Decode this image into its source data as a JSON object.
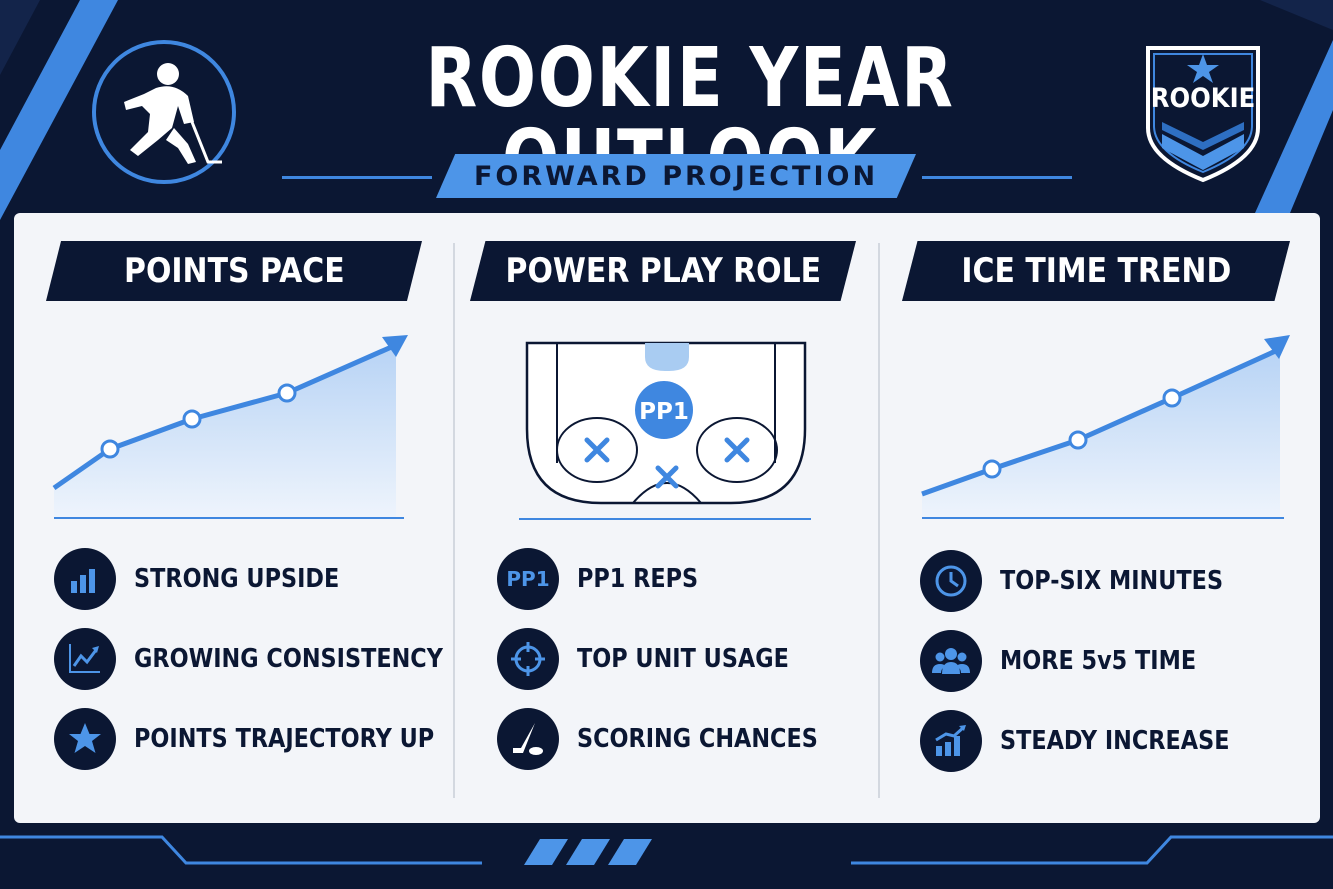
{
  "header": {
    "title": "ROOKIE YEAR OUTLOOK",
    "subtitle": "FORWARD PROJECTION",
    "badge_text": "ROOKIE",
    "player_icon": "hockey-player-icon",
    "badge_icon": "star-icon"
  },
  "colors": {
    "navy": "#0b1733",
    "accent": "#4d95e8",
    "panel": "#f3f5f9"
  },
  "columns": [
    {
      "title": "POINTS PACE",
      "chart_icon": "trend-up-arrow-icon",
      "items": [
        {
          "label": "STRONG UPSIDE",
          "icon": "bar-chart-icon"
        },
        {
          "label": "GROWING CONSISTENCY",
          "icon": "line-chart-icon"
        },
        {
          "label": "POINTS TRAJECTORY UP",
          "icon": "star-icon"
        }
      ]
    },
    {
      "title": "POWER PLAY ROLE",
      "rink_label": "PP1",
      "items": [
        {
          "label": "PP1 REPS",
          "icon": "pp1-icon",
          "icon_text": "PP1"
        },
        {
          "label": "TOP UNIT USAGE",
          "icon": "crosshair-icon"
        },
        {
          "label": "SCORING CHANCES",
          "icon": "hockey-stick-icon"
        }
      ]
    },
    {
      "title": "ICE TIME TREND",
      "chart_icon": "trend-up-arrow-icon",
      "items": [
        {
          "label": "TOP-SIX MINUTES",
          "icon": "clock-icon"
        },
        {
          "label": "MORE 5v5 TIME",
          "icon": "group-icon"
        },
        {
          "label": "STEADY INCREASE",
          "icon": "growth-bars-icon"
        }
      ]
    }
  ]
}
